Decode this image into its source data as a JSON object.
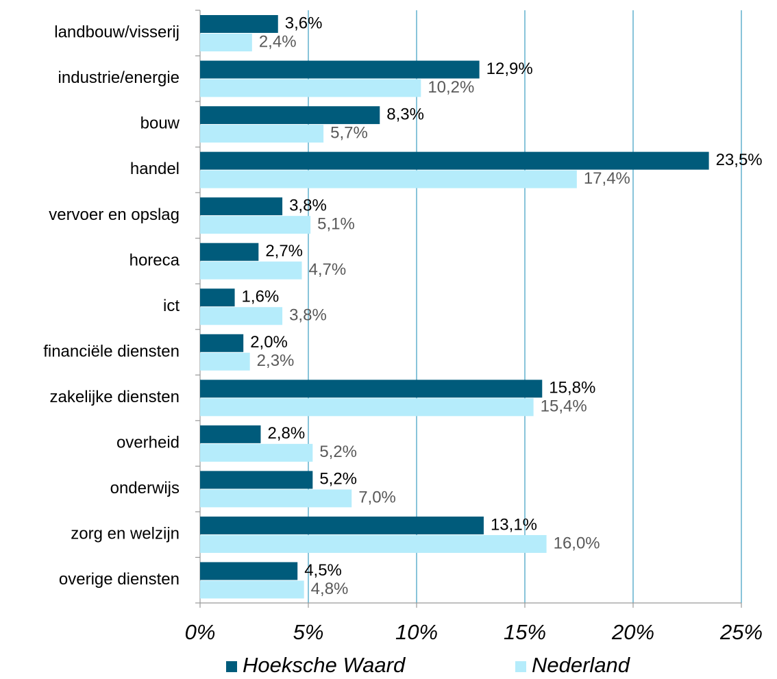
{
  "chart_data": {
    "type": "barh",
    "categories": [
      "landbouw/visserij",
      "industrie/energie",
      "bouw",
      "handel",
      "vervoer en opslag",
      "horeca",
      "ict",
      "financiële diensten",
      "zakelijke diensten",
      "overheid",
      "onderwijs",
      "zorg en welzijn",
      "overige diensten"
    ],
    "series": [
      {
        "name": "Hoeksche Waard",
        "color": "#005b7b",
        "label_color": "#000000",
        "values": [
          3.6,
          12.9,
          8.3,
          23.5,
          3.8,
          2.7,
          1.6,
          2.0,
          15.8,
          2.8,
          5.2,
          13.1,
          4.5
        ],
        "value_labels": [
          "3,6%",
          "12,9%",
          "8,3%",
          "23,5%",
          "3,8%",
          "2,7%",
          "1,6%",
          "2,0%",
          "15,8%",
          "2,8%",
          "5,2%",
          "13,1%",
          "4,5%"
        ]
      },
      {
        "name": "Nederland",
        "color": "#b5ecfb",
        "label_color": "#595959",
        "values": [
          2.4,
          10.2,
          5.7,
          17.4,
          5.1,
          4.7,
          3.8,
          2.3,
          15.4,
          5.2,
          7.0,
          16.0,
          4.8
        ],
        "value_labels": [
          "2,4%",
          "10,2%",
          "5,7%",
          "17,4%",
          "5,1%",
          "4,7%",
          "3,8%",
          "2,3%",
          "15,4%",
          "5,2%",
          "7,0%",
          "16,0%",
          "4,8%"
        ]
      }
    ],
    "xlim": [
      0,
      25
    ],
    "xticks": [
      {
        "value": 0,
        "label": "0%"
      },
      {
        "value": 5,
        "label": "5%"
      },
      {
        "value": 10,
        "label": "10%"
      },
      {
        "value": 15,
        "label": "15%"
      },
      {
        "value": 20,
        "label": "20%"
      },
      {
        "value": 25,
        "label": "25%"
      }
    ],
    "grid": true,
    "grid_color": "#3a9cc0",
    "legend": "bottom"
  }
}
